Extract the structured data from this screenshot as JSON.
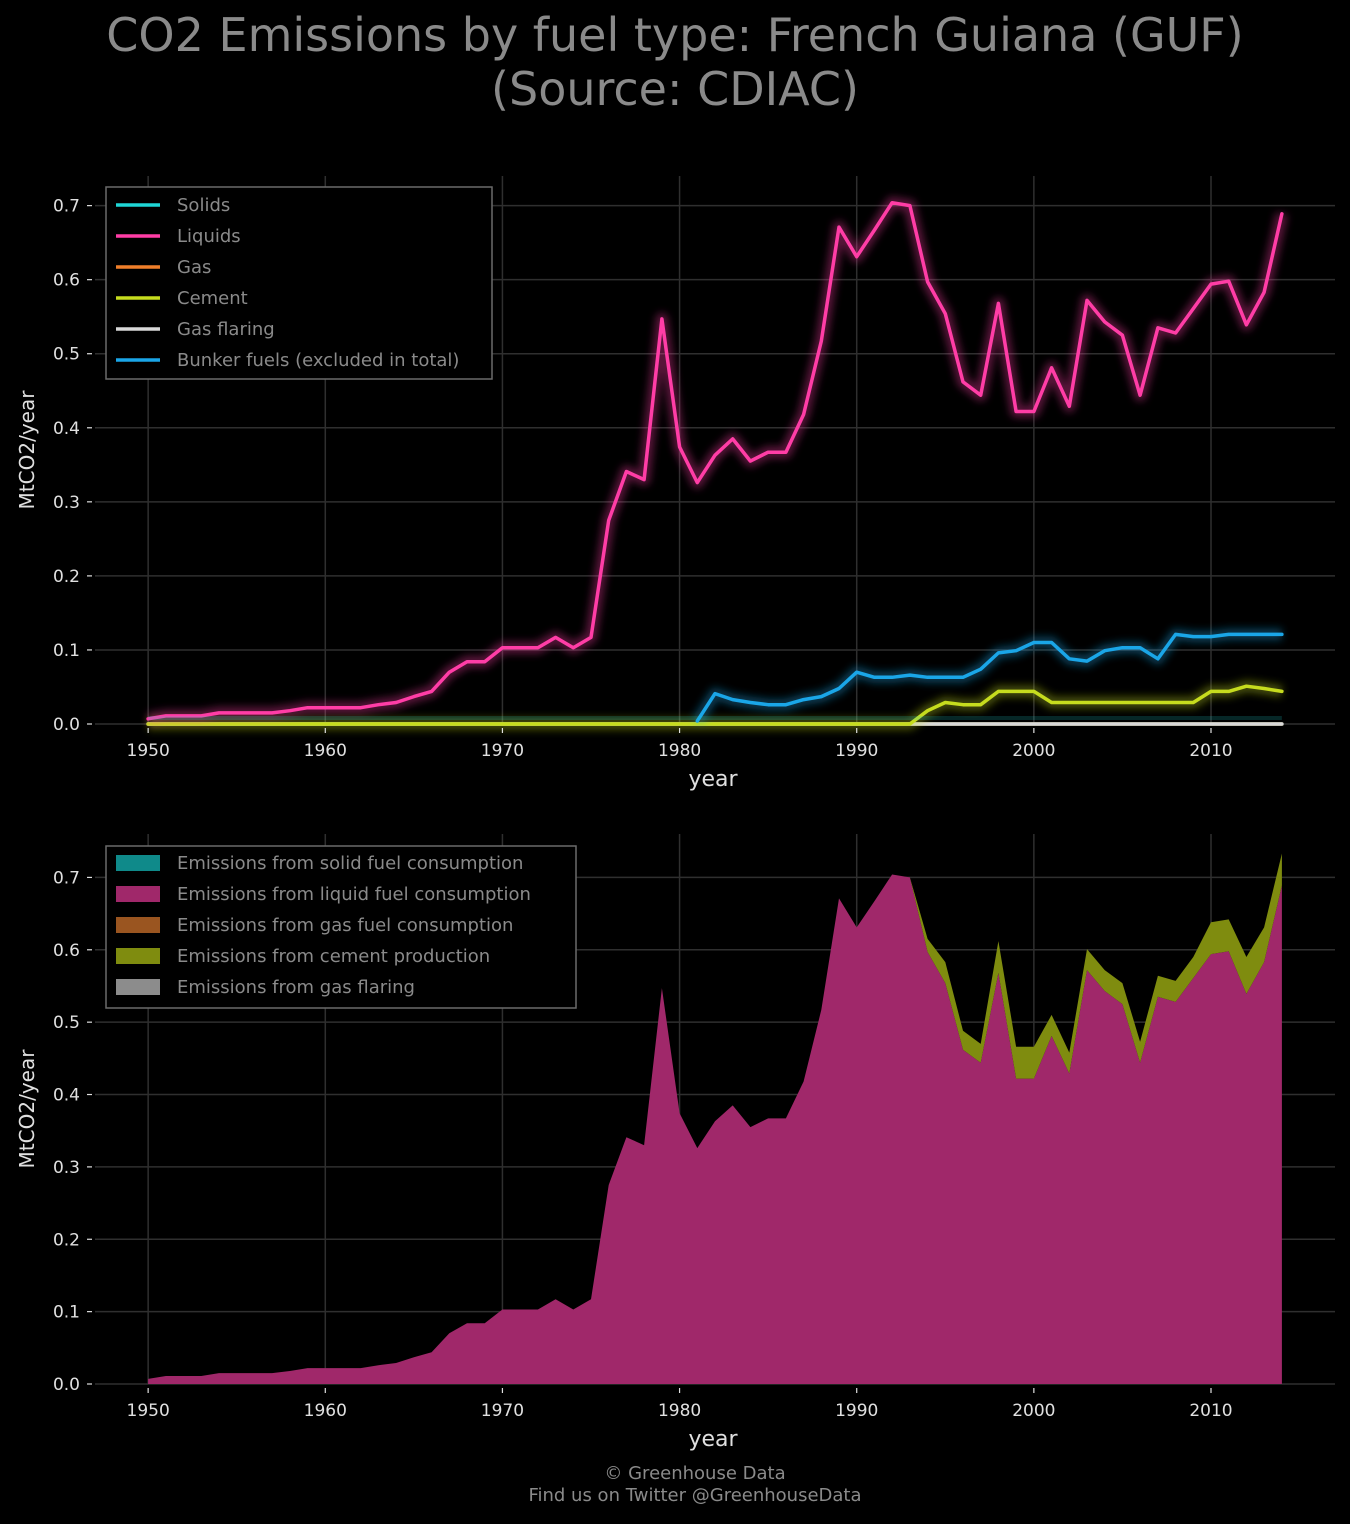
{
  "title": {
    "line1": "CO2 Emissions by fuel type: French Guiana (GUF)",
    "line2": "(Source: CDIAC)"
  },
  "footer": {
    "credit": "© Greenhouse Data",
    "social": "Find us on Twitter @GreenhouseData"
  },
  "colors": {
    "solids": "#1fd6d6",
    "liquids": "#ff3da6",
    "gas": "#f07f2a",
    "cement": "#c6dc1e",
    "gas_flaring": "#d9d9d9",
    "bunker": "#1aa6e8",
    "area_solid": "#0f8a8a",
    "area_liquid": "#a0286a",
    "area_gas": "#9a5520",
    "area_cement": "#7f8c0f",
    "area_flaring": "#8c8c8c",
    "grid": "#2f2f2f",
    "text": "#e0e0e0",
    "muted": "#8a8a8a"
  },
  "chart_data": [
    {
      "type": "line",
      "xlabel": "year",
      "ylabel": "MtCO2/year",
      "xlim": [
        1947,
        2017
      ],
      "ylim": [
        0,
        0.74
      ],
      "xticks": [
        1950,
        1960,
        1970,
        1980,
        1990,
        2000,
        2010
      ],
      "yticks": [
        0.0,
        0.1,
        0.2,
        0.3,
        0.4,
        0.5,
        0.6,
        0.7
      ],
      "tick_labels_y": [
        "0.0",
        "0.1",
        "0.2",
        "0.3",
        "0.4",
        "0.5",
        "0.6",
        "0.7"
      ],
      "grid": true,
      "legend_position": "top-left",
      "x": [
        1950,
        1951,
        1952,
        1953,
        1954,
        1955,
        1956,
        1957,
        1958,
        1959,
        1960,
        1961,
        1962,
        1963,
        1964,
        1965,
        1966,
        1967,
        1968,
        1969,
        1970,
        1971,
        1972,
        1973,
        1974,
        1975,
        1976,
        1977,
        1978,
        1979,
        1980,
        1981,
        1982,
        1983,
        1984,
        1985,
        1986,
        1987,
        1988,
        1989,
        1990,
        1991,
        1992,
        1993,
        1994,
        1995,
        1996,
        1997,
        1998,
        1999,
        2000,
        2001,
        2002,
        2003,
        2004,
        2005,
        2006,
        2007,
        2008,
        2009,
        2010,
        2011,
        2012,
        2013,
        2014
      ],
      "series": [
        {
          "name": "Solids",
          "color_key": "solids",
          "values": [
            0,
            0,
            0,
            0,
            0,
            0,
            0,
            0,
            0,
            0,
            0,
            0,
            0,
            0,
            0,
            0,
            0,
            0,
            0,
            0,
            0,
            0,
            0,
            0,
            0,
            0,
            0,
            0,
            0,
            0,
            0,
            0,
            0,
            0,
            0,
            0,
            0,
            0,
            0,
            0,
            0,
            0,
            0,
            0,
            0,
            0,
            0,
            0,
            0,
            0,
            0,
            0,
            0,
            0,
            0,
            0,
            0,
            0,
            0,
            0,
            0,
            0,
            0,
            0,
            0
          ]
        },
        {
          "name": "Liquids",
          "color_key": "liquids",
          "values": [
            0.007,
            0.011,
            0.011,
            0.011,
            0.015,
            0.015,
            0.015,
            0.015,
            0.018,
            0.022,
            0.022,
            0.022,
            0.022,
            0.026,
            0.029,
            0.037,
            0.044,
            0.07,
            0.084,
            0.084,
            0.103,
            0.103,
            0.103,
            0.117,
            0.103,
            0.117,
            0.275,
            0.341,
            0.33,
            0.547,
            0.374,
            0.326,
            0.363,
            0.385,
            0.355,
            0.367,
            0.367,
            0.418,
            0.517,
            0.671,
            0.631,
            0.667,
            0.704,
            0.7,
            0.597,
            0.554,
            0.462,
            0.444,
            0.568,
            0.422,
            0.422,
            0.481,
            0.429,
            0.572,
            0.543,
            0.525,
            0.444,
            0.535,
            0.528,
            0.561,
            0.594,
            0.598,
            0.539,
            0.583,
            0.689
          ]
        },
        {
          "name": "Gas",
          "color_key": "gas",
          "values": [
            0,
            0,
            0,
            0,
            0,
            0,
            0,
            0,
            0,
            0,
            0,
            0,
            0,
            0,
            0,
            0,
            0,
            0,
            0,
            0,
            0,
            0,
            0,
            0,
            0,
            0,
            0,
            0,
            0,
            0,
            0,
            0,
            0,
            0,
            0,
            0,
            0,
            0,
            0,
            0,
            0,
            0,
            0,
            0,
            0,
            0,
            0,
            0,
            0,
            0,
            0,
            0,
            0,
            0,
            0,
            0,
            0,
            0,
            0,
            0,
            0,
            0,
            0,
            0,
            0
          ]
        },
        {
          "name": "Cement",
          "color_key": "cement",
          "values": [
            0,
            0,
            0,
            0,
            0,
            0,
            0,
            0,
            0,
            0,
            0,
            0,
            0,
            0,
            0,
            0,
            0,
            0,
            0,
            0,
            0,
            0,
            0,
            0,
            0,
            0,
            0,
            0,
            0,
            0,
            0,
            0,
            0,
            0,
            0,
            0,
            0,
            0,
            0,
            0,
            0,
            0,
            0,
            0,
            0.018,
            0.029,
            0.026,
            0.026,
            0.044,
            0.044,
            0.044,
            0.029,
            0.029,
            0.029,
            0.029,
            0.029,
            0.029,
            0.029,
            0.029,
            0.029,
            0.044,
            0.044,
            0.051,
            0.048,
            0.044
          ]
        },
        {
          "name": "Gas flaring",
          "color_key": "gas_flaring",
          "values": [
            0,
            0,
            0,
            0,
            0,
            0,
            0,
            0,
            0,
            0,
            0,
            0,
            0,
            0,
            0,
            0,
            0,
            0,
            0,
            0,
            0,
            0,
            0,
            0,
            0,
            0,
            0,
            0,
            0,
            0,
            0,
            0,
            0,
            0,
            0,
            0,
            0,
            0,
            0,
            0,
            0,
            0,
            0,
            0,
            0,
            0,
            0,
            0,
            0,
            0,
            0,
            0,
            0,
            0,
            0,
            0,
            0,
            0,
            0,
            0,
            0,
            0,
            0,
            0,
            0
          ]
        },
        {
          "name": "Bunker fuels (excluded in total)",
          "color_key": "bunker",
          "start_year": 1981,
          "values": [
            null,
            null,
            null,
            null,
            null,
            null,
            null,
            null,
            null,
            null,
            null,
            null,
            null,
            null,
            null,
            null,
            null,
            null,
            null,
            null,
            null,
            null,
            null,
            null,
            null,
            null,
            null,
            null,
            null,
            null,
            null,
            0.004,
            0.041,
            0.033,
            0.029,
            0.026,
            0.026,
            0.033,
            0.037,
            0.048,
            0.07,
            0.063,
            0.063,
            0.066,
            0.063,
            0.063,
            0.063,
            0.074,
            0.096,
            0.099,
            0.11,
            0.11,
            0.088,
            0.085,
            0.099,
            0.103,
            0.103,
            0.088,
            0.121,
            0.118,
            0.118,
            0.121,
            0.121,
            0.121,
            0.121
          ]
        }
      ]
    },
    {
      "type": "area",
      "stacked": true,
      "xlabel": "year",
      "ylabel": "MtCO2/year",
      "xlim": [
        1947,
        2017
      ],
      "ylim": [
        0,
        0.76
      ],
      "xticks": [
        1950,
        1960,
        1970,
        1980,
        1990,
        2000,
        2010
      ],
      "yticks": [
        0.0,
        0.1,
        0.2,
        0.3,
        0.4,
        0.5,
        0.6,
        0.7
      ],
      "tick_labels_y": [
        "0.0",
        "0.1",
        "0.2",
        "0.3",
        "0.4",
        "0.5",
        "0.6",
        "0.7"
      ],
      "grid": true,
      "legend_position": "top-left",
      "series": [
        {
          "name": "Emissions from solid fuel consumption",
          "color_key": "area_solid",
          "source": "Solids"
        },
        {
          "name": "Emissions from liquid fuel consumption",
          "color_key": "area_liquid",
          "source": "Liquids"
        },
        {
          "name": "Emissions from gas fuel consumption",
          "color_key": "area_gas",
          "source": "Gas"
        },
        {
          "name": "Emissions from cement production",
          "color_key": "area_cement",
          "source": "Cement"
        },
        {
          "name": "Emissions from gas flaring",
          "color_key": "area_flaring",
          "source": "Gas flaring"
        }
      ]
    }
  ]
}
